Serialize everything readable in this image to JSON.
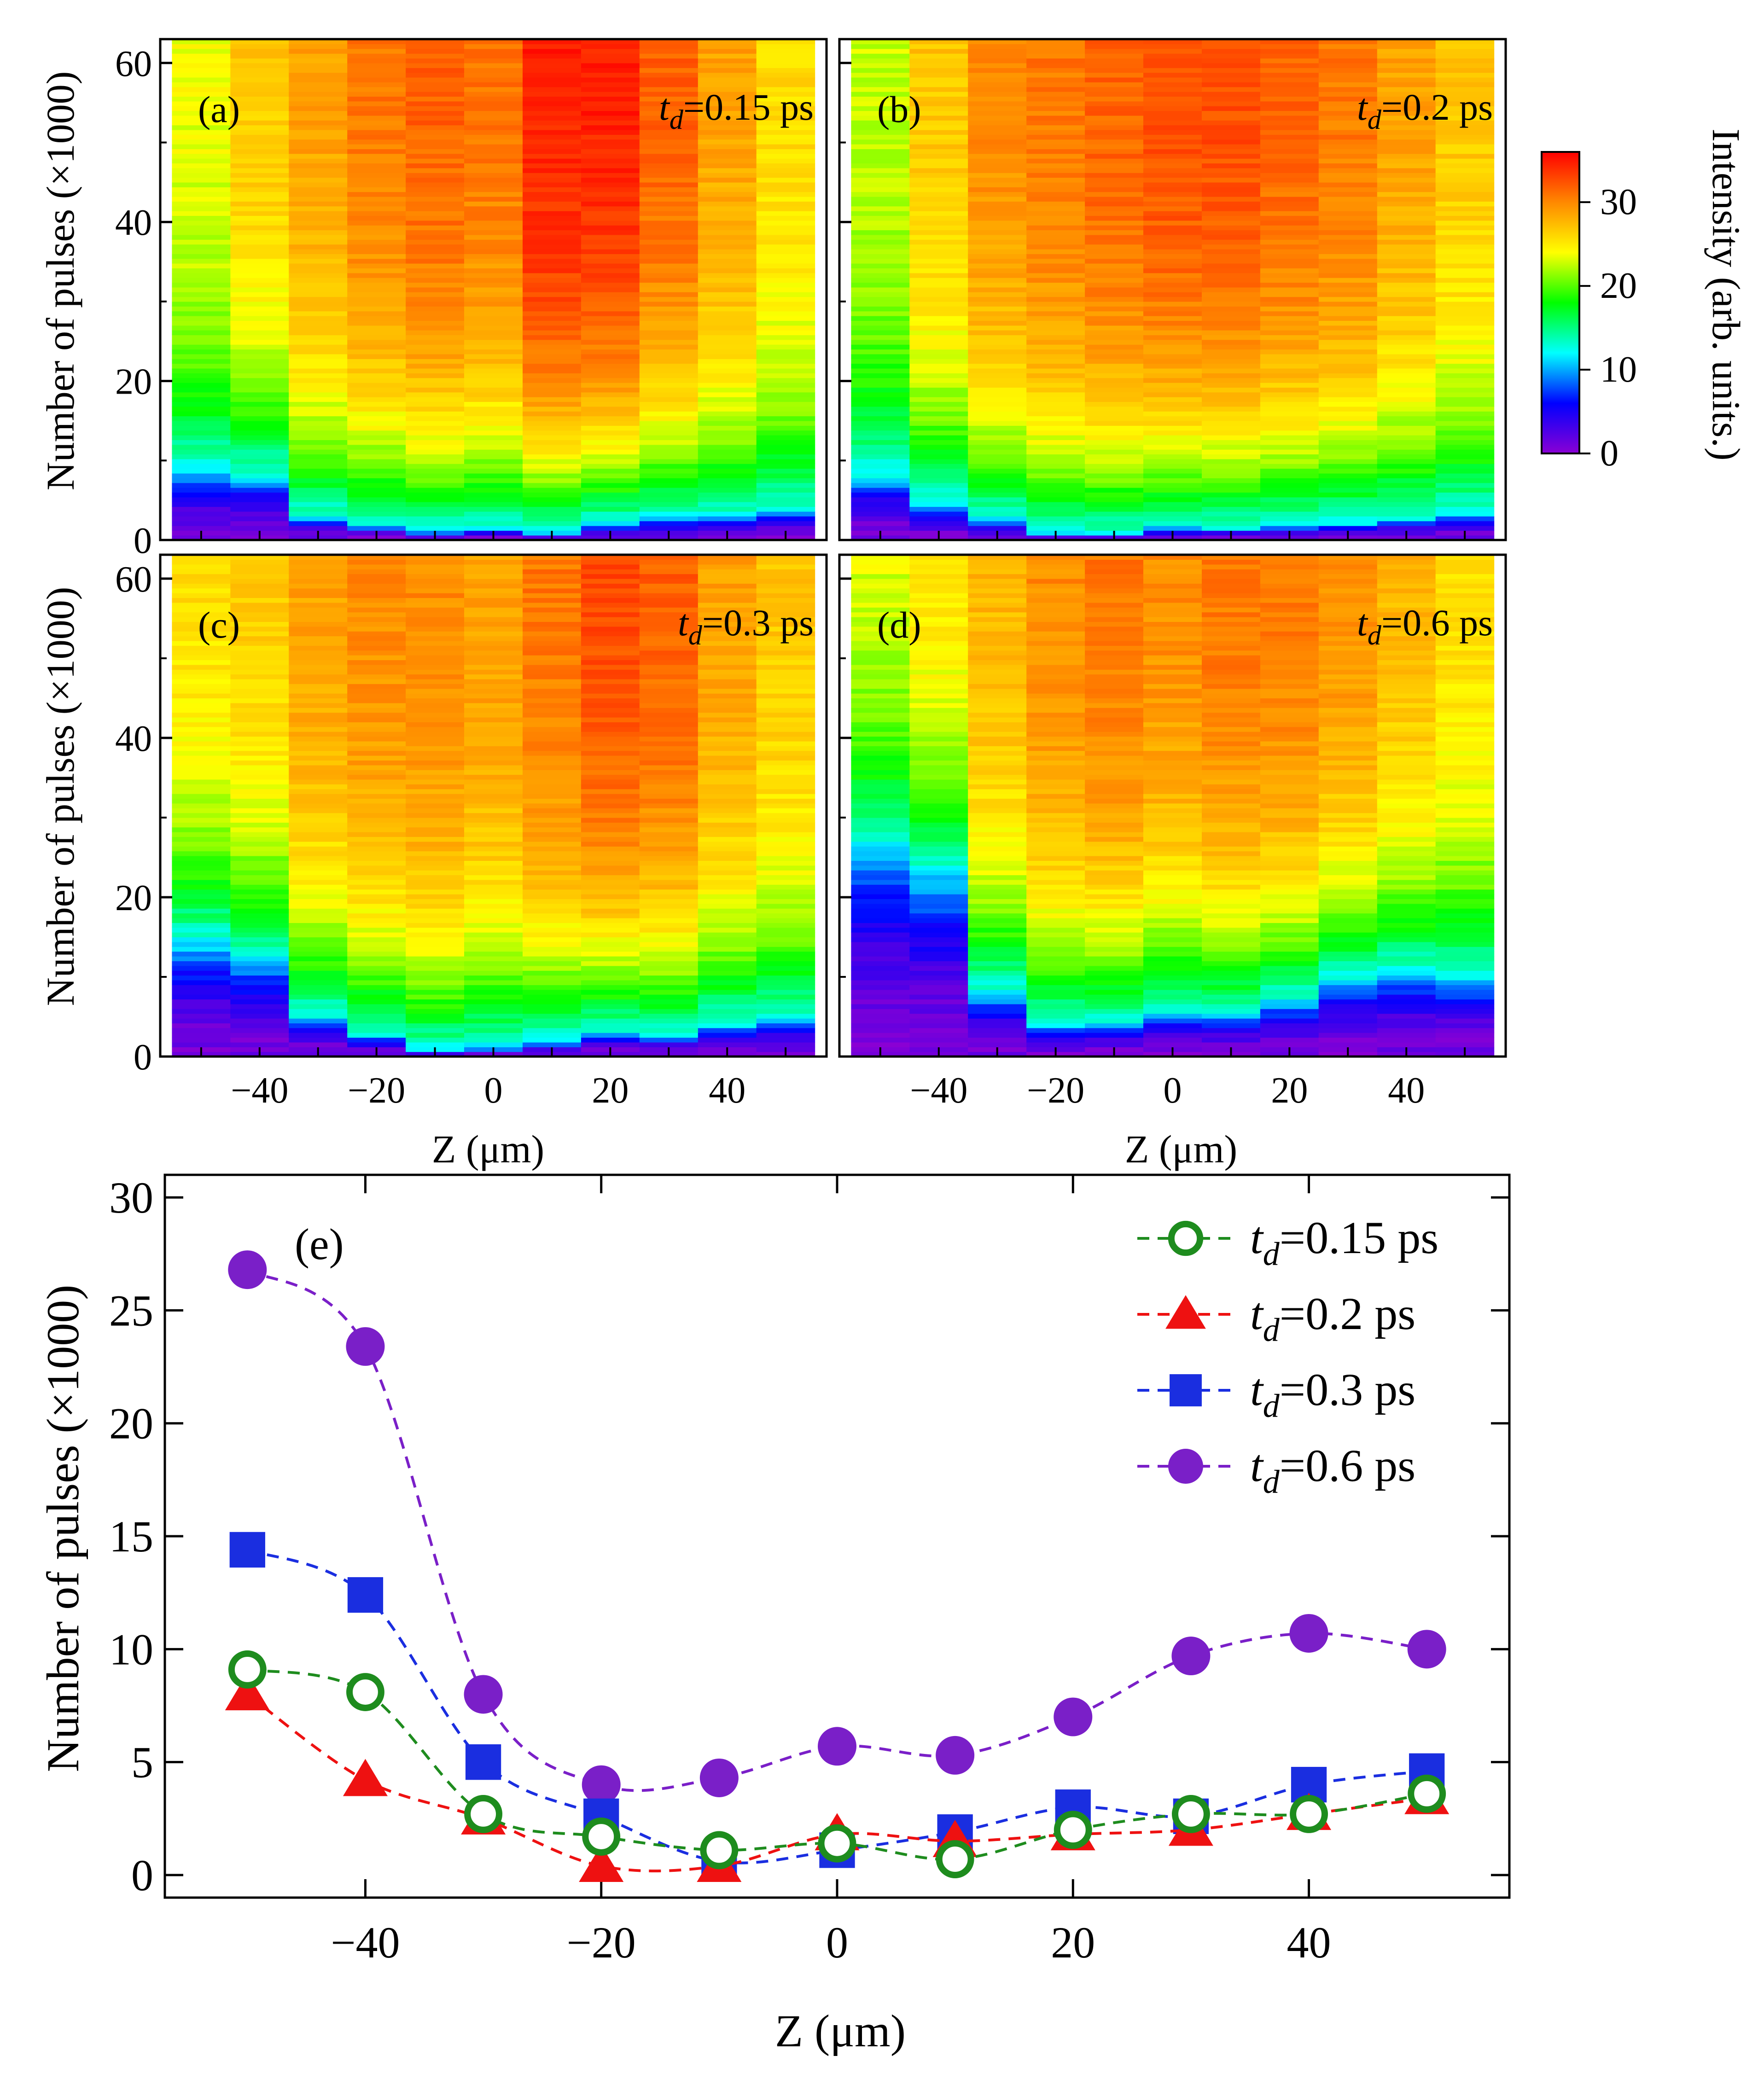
{
  "colors": {
    "td_015": "#1e8c1e",
    "td_02": "#ee1111",
    "td_03": "#1a2ee0",
    "td_06": "#7a1fc8"
  },
  "colorbar": {
    "title": "Intensity (arb. units.)",
    "ticks": [
      "0",
      "10",
      "20",
      "30"
    ],
    "range": [
      0,
      36
    ],
    "colors": [
      "#8a00d4",
      "#0000ff",
      "#00ffff",
      "#00ff00",
      "#ffff00",
      "#ff8800",
      "#ff0000"
    ]
  },
  "heatmaps": {
    "ylabel": "Number of pulses (×1000)",
    "xlabel": "Z (μm)",
    "ylim": [
      0,
      63
    ],
    "xlim": [
      -57,
      57
    ],
    "y_ticks": [
      "0",
      "20",
      "40",
      "60"
    ],
    "x_ticks": [
      "-40",
      "-20",
      "0",
      "20",
      "40"
    ],
    "z_positions": [
      -50,
      -40,
      -30,
      -20,
      -10,
      0,
      10,
      20,
      30,
      40,
      50
    ]
  },
  "chart_data": [
    {
      "type": "heatmap",
      "panel": "(a)",
      "label_prefix": "t",
      "label_sub": "d",
      "label_value": "=0.15 ps",
      "columns": [
        {
          "z": -50,
          "threshold": 8.8,
          "max": 24
        },
        {
          "z": -40,
          "threshold": 8.0,
          "max": 27
        },
        {
          "z": -30,
          "threshold": 2.8,
          "max": 29
        },
        {
          "z": -20,
          "threshold": 1.9,
          "max": 31
        },
        {
          "z": -10,
          "threshold": 1.1,
          "max": 32
        },
        {
          "z": 0,
          "threshold": 1.4,
          "max": 31
        },
        {
          "z": 10,
          "threshold": 0.9,
          "max": 35
        },
        {
          "z": 20,
          "threshold": 2.0,
          "max": 35
        },
        {
          "z": 30,
          "threshold": 2.8,
          "max": 32
        },
        {
          "z": 40,
          "threshold": 2.9,
          "max": 29
        },
        {
          "z": 50,
          "threshold": 3.6,
          "max": 26
        }
      ]
    },
    {
      "type": "heatmap",
      "panel": "(b)",
      "label_prefix": "t",
      "label_sub": "d",
      "label_value": "=0.2 ps",
      "columns": [
        {
          "z": -50,
          "threshold": 8.0,
          "max": 23
        },
        {
          "z": -40,
          "threshold": 4.5,
          "max": 27
        },
        {
          "z": -30,
          "threshold": 2.5,
          "max": 30
        },
        {
          "z": -20,
          "threshold": 0.6,
          "max": 31
        },
        {
          "z": -10,
          "threshold": 0.6,
          "max": 32
        },
        {
          "z": 0,
          "threshold": 1.6,
          "max": 33
        },
        {
          "z": 10,
          "threshold": 1.5,
          "max": 33
        },
        {
          "z": 20,
          "threshold": 1.8,
          "max": 32
        },
        {
          "z": 30,
          "threshold": 2.0,
          "max": 31
        },
        {
          "z": 40,
          "threshold": 2.7,
          "max": 29
        },
        {
          "z": 50,
          "threshold": 3.4,
          "max": 27
        }
      ]
    },
    {
      "type": "heatmap",
      "panel": "(c)",
      "label_prefix": "t",
      "label_sub": "d",
      "label_value": "=0.3 ps",
      "columns": [
        {
          "z": -50,
          "threshold": 14.4,
          "max": 26
        },
        {
          "z": -40,
          "threshold": 12.4,
          "max": 27
        },
        {
          "z": -30,
          "threshold": 5.0,
          "max": 29
        },
        {
          "z": -20,
          "threshold": 2.6,
          "max": 30
        },
        {
          "z": -10,
          "threshold": 0.6,
          "max": 30
        },
        {
          "z": 0,
          "threshold": 1.1,
          "max": 29
        },
        {
          "z": 10,
          "threshold": 1.9,
          "max": 31
        },
        {
          "z": 20,
          "threshold": 3.0,
          "max": 33
        },
        {
          "z": 30,
          "threshold": 2.6,
          "max": 32
        },
        {
          "z": 40,
          "threshold": 4.0,
          "max": 29
        },
        {
          "z": 50,
          "threshold": 4.6,
          "max": 27
        }
      ]
    },
    {
      "type": "heatmap",
      "panel": "(d)",
      "label_prefix": "t",
      "label_sub": "d",
      "label_value": "=0.6 ps",
      "columns": [
        {
          "z": -50,
          "threshold": 26.8,
          "max": 24
        },
        {
          "z": -40,
          "threshold": 23.4,
          "max": 26
        },
        {
          "z": -30,
          "threshold": 8.0,
          "max": 28
        },
        {
          "z": -20,
          "threshold": 4.0,
          "max": 30
        },
        {
          "z": -10,
          "threshold": 4.3,
          "max": 31
        },
        {
          "z": 0,
          "threshold": 5.7,
          "max": 30
        },
        {
          "z": 10,
          "threshold": 5.3,
          "max": 31
        },
        {
          "z": 20,
          "threshold": 7.0,
          "max": 31
        },
        {
          "z": 30,
          "threshold": 9.7,
          "max": 30
        },
        {
          "z": 40,
          "threshold": 10.7,
          "max": 28
        },
        {
          "z": 50,
          "threshold": 10.0,
          "max": 26
        }
      ]
    },
    {
      "type": "line",
      "panel": "(e)",
      "xlabel": "Z (μm)",
      "ylabel": "Number of pulses (×1000)",
      "xlim": [
        -57,
        57
      ],
      "ylim": [
        -1,
        31
      ],
      "x_ticks": [
        "-40",
        "-20",
        "0",
        "20",
        "40"
      ],
      "y_ticks": [
        "0",
        "5",
        "10",
        "15",
        "20",
        "25",
        "30"
      ],
      "x": [
        -50,
        -40,
        -30,
        -20,
        -10,
        0,
        10,
        20,
        30,
        40,
        50
      ],
      "series": [
        {
          "name": "=0.15 ps",
          "prefix": "t",
          "sub": "d",
          "marker": "open-circle",
          "color_key": "td_015",
          "values": [
            9.1,
            8.1,
            2.7,
            1.7,
            1.1,
            1.4,
            0.7,
            2.0,
            2.7,
            2.7,
            3.6
          ]
        },
        {
          "name": "=0.2 ps",
          "prefix": "t",
          "sub": "d",
          "marker": "triangle",
          "color_key": "td_02",
          "values": [
            8.0,
            4.2,
            2.5,
            0.4,
            0.4,
            1.8,
            1.5,
            1.8,
            2.0,
            2.7,
            3.4
          ]
        },
        {
          "name": "=0.3 ps",
          "prefix": "t",
          "sub": "d",
          "marker": "square",
          "color_key": "td_03",
          "values": [
            14.4,
            12.4,
            5.0,
            2.6,
            0.6,
            1.1,
            1.9,
            3.0,
            2.6,
            4.0,
            4.6
          ]
        },
        {
          "name": "=0.6 ps",
          "prefix": "t",
          "sub": "d",
          "marker": "filled-circle",
          "color_key": "td_06",
          "values": [
            26.8,
            23.4,
            8.0,
            4.0,
            4.3,
            5.7,
            5.3,
            7.0,
            9.7,
            10.7,
            10.0
          ]
        }
      ]
    }
  ]
}
